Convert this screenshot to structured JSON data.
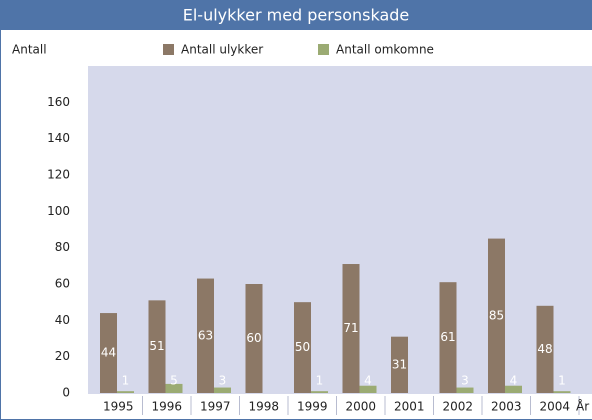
{
  "chart_data": {
    "type": "bar",
    "title": "El-ulykker med personskade",
    "y_label": "Antall",
    "x_label": "År",
    "categories": [
      "1995",
      "1996",
      "1997",
      "1998",
      "1999",
      "2000",
      "2001",
      "2002",
      "2003",
      "2004"
    ],
    "series": [
      {
        "name": "Antall ulykker",
        "color": "#8c7866",
        "values": [
          44,
          51,
          63,
          60,
          50,
          71,
          31,
          61,
          85,
          48
        ]
      },
      {
        "name": "Antall omkomne",
        "color": "#9bab73",
        "values": [
          1,
          5,
          3,
          null,
          1,
          4,
          null,
          3,
          4,
          1
        ]
      }
    ],
    "ylim": [
      0,
      180
    ],
    "yticks": [
      0,
      20,
      40,
      60,
      80,
      100,
      120,
      140,
      160
    ],
    "grid": false
  }
}
